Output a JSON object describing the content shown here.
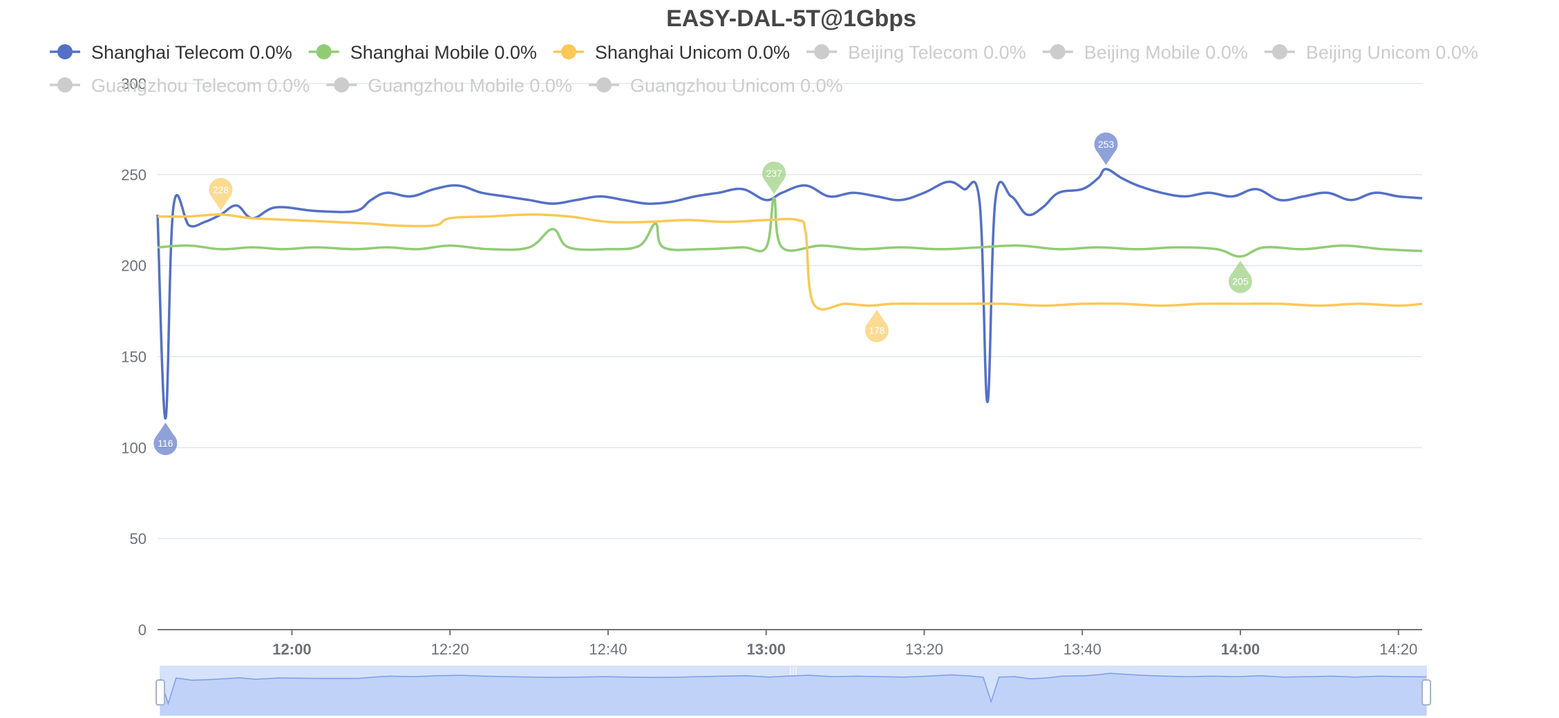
{
  "chart_data": {
    "type": "line",
    "title": "EASY-DAL-5T@1Gbps",
    "xlabel": "",
    "ylabel": "",
    "ylim": [
      0,
      300
    ],
    "yticks": [
      0,
      50,
      100,
      150,
      200,
      250,
      300
    ],
    "xlim": [
      "11:43",
      "14:23"
    ],
    "xticks": [
      {
        "label": "12:00",
        "bold": true
      },
      {
        "label": "12:20",
        "bold": false
      },
      {
        "label": "12:40",
        "bold": false
      },
      {
        "label": "13:00",
        "bold": true
      },
      {
        "label": "13:20",
        "bold": false
      },
      {
        "label": "13:40",
        "bold": false
      },
      {
        "label": "14:00",
        "bold": true
      },
      {
        "label": "14:20",
        "bold": false
      }
    ],
    "grid": true,
    "legend_position": "top",
    "series": [
      {
        "name": "Shanghai Telecom 0.0%",
        "color": "#5470c6",
        "active": true,
        "points": [
          [
            "11:43",
            228
          ],
          [
            "11:44",
            116
          ],
          [
            "11:45",
            232
          ],
          [
            "11:47",
            222
          ],
          [
            "11:49",
            224
          ],
          [
            "11:51",
            228
          ],
          [
            "11:53",
            233
          ],
          [
            "11:55",
            226
          ],
          [
            "11:58",
            232
          ],
          [
            "12:03",
            230
          ],
          [
            "12:08",
            230
          ],
          [
            "12:10",
            236
          ],
          [
            "12:12",
            240
          ],
          [
            "12:15",
            238
          ],
          [
            "12:18",
            242
          ],
          [
            "12:21",
            244
          ],
          [
            "12:24",
            240
          ],
          [
            "12:27",
            238
          ],
          [
            "12:30",
            236
          ],
          [
            "12:33",
            234
          ],
          [
            "12:36",
            236
          ],
          [
            "12:39",
            238
          ],
          [
            "12:42",
            236
          ],
          [
            "12:45",
            234
          ],
          [
            "12:48",
            235
          ],
          [
            "12:51",
            238
          ],
          [
            "12:54",
            240
          ],
          [
            "12:57",
            242
          ],
          [
            "13:00",
            236
          ],
          [
            "13:02",
            240
          ],
          [
            "13:05",
            244
          ],
          [
            "13:08",
            238
          ],
          [
            "13:11",
            240
          ],
          [
            "13:14",
            238
          ],
          [
            "13:17",
            236
          ],
          [
            "13:20",
            240
          ],
          [
            "13:23",
            246
          ],
          [
            "13:25",
            242
          ],
          [
            "13:27",
            235
          ],
          [
            "13:28",
            125
          ],
          [
            "13:29",
            236
          ],
          [
            "13:31",
            238
          ],
          [
            "13:33",
            228
          ],
          [
            "13:35",
            232
          ],
          [
            "13:37",
            240
          ],
          [
            "13:40",
            242
          ],
          [
            "13:42",
            248
          ],
          [
            "13:43",
            253
          ],
          [
            "13:45",
            248
          ],
          [
            "13:47",
            244
          ],
          [
            "13:50",
            240
          ],
          [
            "13:53",
            238
          ],
          [
            "13:56",
            240
          ],
          [
            "13:59",
            238
          ],
          [
            "14:02",
            242
          ],
          [
            "14:05",
            236
          ],
          [
            "14:08",
            238
          ],
          [
            "14:11",
            240
          ],
          [
            "14:14",
            236
          ],
          [
            "14:17",
            240
          ],
          [
            "14:20",
            238
          ],
          [
            "14:23",
            237
          ]
        ],
        "markers": [
          [
            "11:44",
            116
          ],
          [
            "13:43",
            253
          ]
        ]
      },
      {
        "name": "Shanghai Mobile 0.0%",
        "color": "#91cc75",
        "active": true,
        "points": [
          [
            "11:43",
            210
          ],
          [
            "11:47",
            211
          ],
          [
            "11:51",
            209
          ],
          [
            "11:55",
            210
          ],
          [
            "11:59",
            209
          ],
          [
            "12:03",
            210
          ],
          [
            "12:08",
            209
          ],
          [
            "12:12",
            210
          ],
          [
            "12:16",
            209
          ],
          [
            "12:20",
            211
          ],
          [
            "12:25",
            209
          ],
          [
            "12:30",
            210
          ],
          [
            "12:33",
            220
          ],
          [
            "12:35",
            210
          ],
          [
            "12:40",
            209
          ],
          [
            "12:44",
            211
          ],
          [
            "12:46",
            223
          ],
          [
            "12:47",
            210
          ],
          [
            "12:52",
            209
          ],
          [
            "12:57",
            210
          ],
          [
            "13:00",
            210
          ],
          [
            "13:01",
            237
          ],
          [
            "13:02",
            210
          ],
          [
            "13:07",
            211
          ],
          [
            "13:12",
            209
          ],
          [
            "13:17",
            210
          ],
          [
            "13:22",
            209
          ],
          [
            "13:27",
            210
          ],
          [
            "13:32",
            211
          ],
          [
            "13:37",
            209
          ],
          [
            "13:42",
            210
          ],
          [
            "13:47",
            209
          ],
          [
            "13:52",
            210
          ],
          [
            "13:57",
            209
          ],
          [
            "14:00",
            205
          ],
          [
            "14:03",
            210
          ],
          [
            "14:08",
            209
          ],
          [
            "14:13",
            211
          ],
          [
            "14:18",
            209
          ],
          [
            "14:23",
            208
          ]
        ],
        "markers": [
          [
            "13:01",
            237
          ],
          [
            "14:00",
            205
          ]
        ]
      },
      {
        "name": "Shanghai Unicom 0.0%",
        "color": "#fac858",
        "active": true,
        "points": [
          [
            "11:43",
            227
          ],
          [
            "11:47",
            227
          ],
          [
            "11:51",
            228
          ],
          [
            "11:55",
            226
          ],
          [
            "12:00",
            225
          ],
          [
            "12:05",
            224
          ],
          [
            "12:10",
            223
          ],
          [
            "12:13",
            222
          ],
          [
            "12:18",
            222
          ],
          [
            "12:20",
            226
          ],
          [
            "12:25",
            227
          ],
          [
            "12:30",
            228
          ],
          [
            "12:35",
            227
          ],
          [
            "12:40",
            224
          ],
          [
            "12:45",
            224
          ],
          [
            "12:50",
            225
          ],
          [
            "12:55",
            224
          ],
          [
            "13:00",
            225
          ],
          [
            "13:04",
            225
          ],
          [
            "13:05",
            218
          ],
          [
            "13:06",
            179
          ],
          [
            "13:10",
            179
          ],
          [
            "13:13",
            178
          ],
          [
            "13:16",
            179
          ],
          [
            "13:20",
            179
          ],
          [
            "13:25",
            179
          ],
          [
            "13:30",
            179
          ],
          [
            "13:35",
            178
          ],
          [
            "13:40",
            179
          ],
          [
            "13:45",
            179
          ],
          [
            "13:50",
            178
          ],
          [
            "13:55",
            179
          ],
          [
            "14:00",
            179
          ],
          [
            "14:05",
            179
          ],
          [
            "14:10",
            178
          ],
          [
            "14:15",
            179
          ],
          [
            "14:20",
            178
          ],
          [
            "14:23",
            179
          ]
        ],
        "markers": [
          [
            "11:51",
            228
          ],
          [
            "13:14",
            178
          ]
        ]
      },
      {
        "name": "Beijing Telecom 0.0%",
        "color": "#cccccc",
        "active": false,
        "points": [],
        "markers": []
      },
      {
        "name": "Beijing Mobile 0.0%",
        "color": "#cccccc",
        "active": false,
        "points": [],
        "markers": []
      },
      {
        "name": "Beijing Unicom 0.0%",
        "color": "#cccccc",
        "active": false,
        "points": [],
        "markers": []
      },
      {
        "name": "Guangzhou Telecom 0.0%",
        "color": "#cccccc",
        "active": false,
        "points": [],
        "markers": []
      },
      {
        "name": "Guangzhou Mobile 0.0%",
        "color": "#cccccc",
        "active": false,
        "points": [],
        "markers": []
      },
      {
        "name": "Guangzhou Unicom 0.0%",
        "color": "#cccccc",
        "active": false,
        "points": [],
        "markers": []
      }
    ],
    "datazoom": {
      "start": "11:43",
      "end": "14:23"
    }
  }
}
